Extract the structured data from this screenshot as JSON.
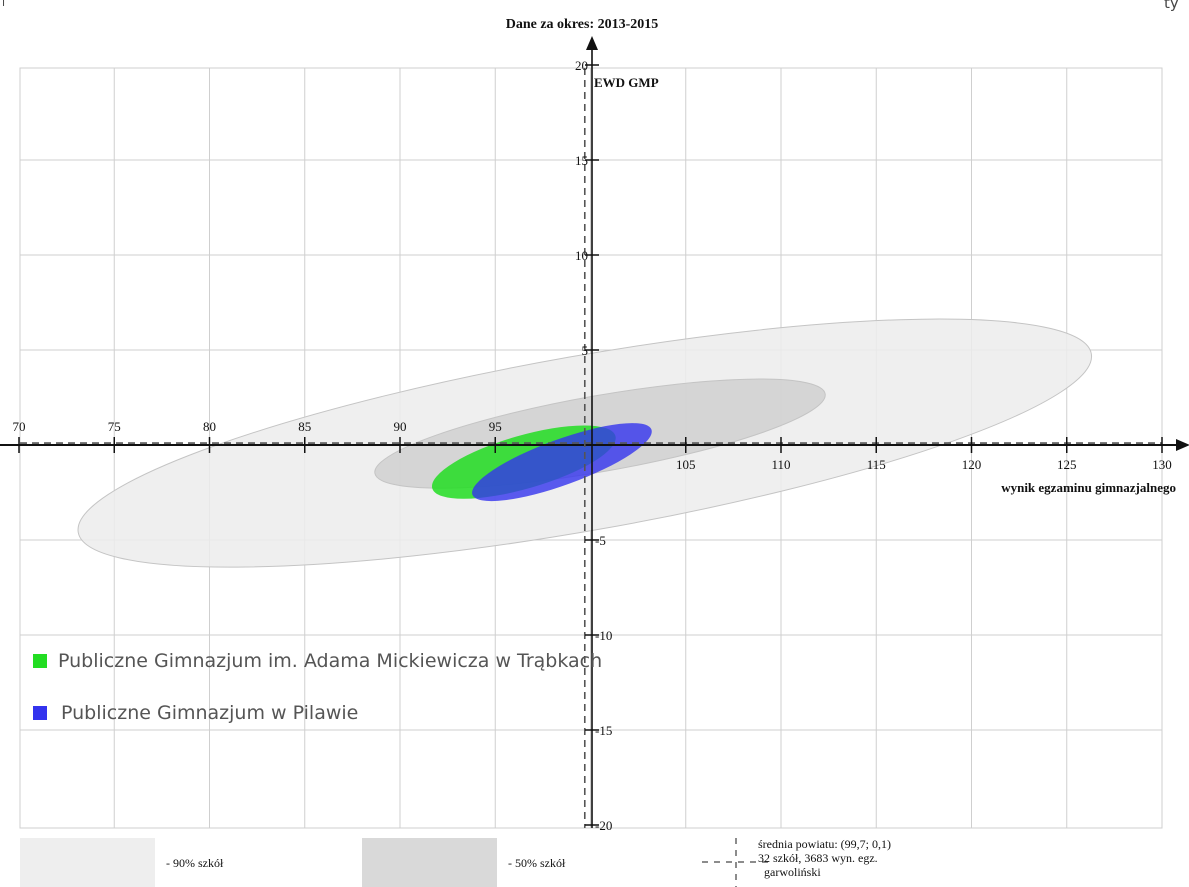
{
  "chart_data": {
    "type": "scatter",
    "title": "Dane za okres: 2013-2015",
    "xlabel": "wynik egzaminu gimnazjalnego",
    "ylabel": "EWD GMP",
    "xlim": [
      70,
      130
    ],
    "ylim": [
      -20,
      20
    ],
    "x_ticks": [
      70,
      75,
      80,
      85,
      90,
      95,
      105,
      110,
      115,
      120,
      125,
      130
    ],
    "y_ticks": [
      20,
      15,
      10,
      5,
      -5,
      -10,
      -15,
      -20
    ],
    "grid": true,
    "regions": [
      {
        "label": "- 90% szkół",
        "cx": 99.7,
        "cy": 0.1,
        "rx": 27,
        "ry": 4.6,
        "angle": 10,
        "color": "#dcdcdc"
      },
      {
        "label": "- 50% szkół",
        "cx": 100.5,
        "cy": 0.6,
        "rx": 12,
        "ry": 2.0,
        "angle": 10,
        "color": "#c8c8c8"
      }
    ],
    "series": [
      {
        "name": "Publiczne Gimnazjum im. Adama Mickiewicza w Trąbkach",
        "cx": 96.5,
        "cy": -0.9,
        "rx": 5.0,
        "ry": 1.4,
        "angle": 16,
        "color": "#22dd22"
      },
      {
        "name": "Publiczne Gimnazjum w Pilawie",
        "cx": 98.5,
        "cy": -0.9,
        "rx": 5.0,
        "ry": 1.2,
        "angle": 20,
        "color": "#3333ee"
      }
    ],
    "mean": {
      "x": 99.7,
      "y": 0.1
    },
    "legend_placement": "bottom-left"
  },
  "mean_legend": {
    "line1": "średnia powiatu: (99,7; 0,1)",
    "line2": "32 szkół, 3683 wyn. egz.",
    "line3": "garwoliński"
  },
  "corner_text": "i",
  "corner_right": "ty"
}
